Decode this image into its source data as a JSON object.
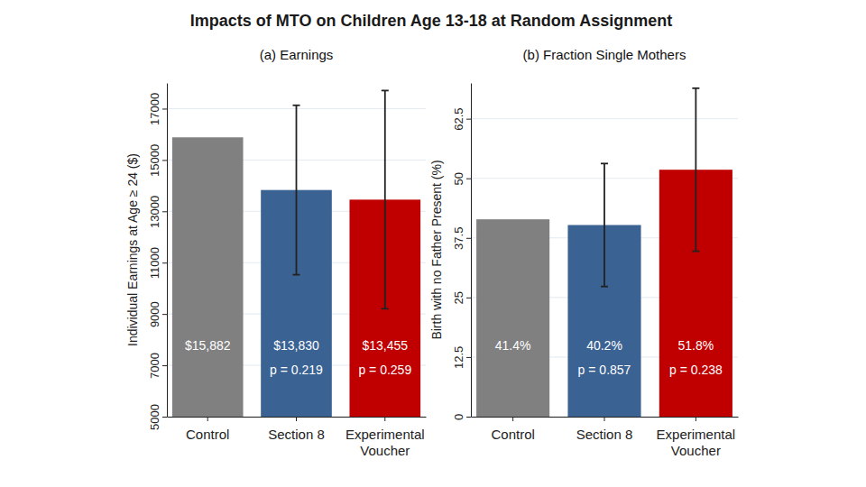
{
  "title": "Impacts of MTO on Children Age 13-18 at Random Assignment",
  "chart_data": [
    {
      "type": "bar",
      "title": "(a) Earnings",
      "y_label": "Individual Earnings at Age ≥ 24 ($)",
      "categories": [
        "Control",
        "Section 8",
        "Experimental Voucher"
      ],
      "values": [
        15882,
        13830,
        13455
      ],
      "value_labels": [
        "$15,882",
        "$13,830",
        "$13,455"
      ],
      "errors": [
        null,
        3300,
        4250
      ],
      "annotations": [
        null,
        "p = 0.219",
        "p = 0.259"
      ],
      "colors": [
        "#808080",
        "#3a6293",
        "#c00000"
      ],
      "ylim": [
        5000,
        18000
      ],
      "yticks": [
        5000,
        7000,
        9000,
        11000,
        13000,
        15000,
        17000
      ],
      "grid": true,
      "data_labels": true
    },
    {
      "type": "bar",
      "title": "(b) Fraction Single Mothers",
      "y_label": "Birth with no Father Present (%)",
      "categories": [
        "Control",
        "Section 8",
        "Experimental Voucher"
      ],
      "values": [
        41.4,
        40.2,
        51.8
      ],
      "value_labels": [
        "41.4%",
        "40.2%",
        "51.8%"
      ],
      "errors": [
        null,
        12.9,
        17.1
      ],
      "annotations": [
        null,
        "p = 0.857",
        "p = 0.238"
      ],
      "colors": [
        "#808080",
        "#3a6293",
        "#c00000"
      ],
      "ylim": [
        0,
        70
      ],
      "yticks": [
        0,
        12.5,
        25,
        37.5,
        50,
        62.5
      ],
      "grid": true,
      "data_labels": true
    }
  ]
}
